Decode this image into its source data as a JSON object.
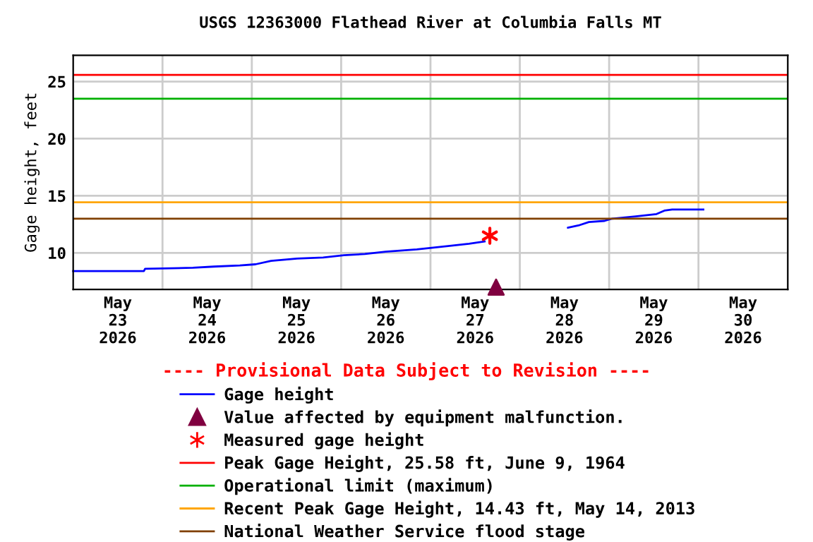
{
  "chart_data": {
    "type": "line",
    "title": "USGS 12363000 Flathead River at Columbia Falls MT",
    "ylabel": "Gage height, feet",
    "xlim": [
      "2026-05-23T00:00",
      "2026-05-31T00:00"
    ],
    "xticks": [
      {
        "value": "2026-05-23T00:00",
        "label": null
      },
      {
        "value": "2026-05-24T00:00",
        "label": null
      },
      {
        "value": "2026-05-25T00:00",
        "label": null
      },
      {
        "value": "2026-05-26T00:00",
        "label": null
      },
      {
        "value": "2026-05-27T00:00",
        "label": null
      },
      {
        "value": "2026-05-28T00:00",
        "label": null
      },
      {
        "value": "2026-05-29T00:00",
        "label": null
      },
      {
        "value": "2026-05-30T00:00",
        "label": null
      },
      {
        "value": "2026-05-31T00:00",
        "label": null
      },
      {
        "value": "2026-05-23T12:00",
        "label": "May\n23\n2026"
      },
      {
        "value": "2026-05-24T12:00",
        "label": "May\n24\n2026"
      },
      {
        "value": "2026-05-25T12:00",
        "label": "May\n25\n2026"
      },
      {
        "value": "2026-05-26T12:00",
        "label": "May\n26\n2026"
      },
      {
        "value": "2026-05-27T12:00",
        "label": "May\n27\n2026"
      },
      {
        "value": "2026-05-28T12:00",
        "label": "May\n28\n2026"
      },
      {
        "value": "2026-05-29T12:00",
        "label": "May\n29\n2026"
      },
      {
        "value": "2026-05-30T12:00",
        "label": "May\n30\n2026"
      }
    ],
    "ylim": [
      6.8,
      27.3
    ],
    "yticks": [
      10,
      15,
      20,
      25
    ],
    "grid": true,
    "legend": "bottom",
    "series": [
      {
        "name": "Gage height",
        "color": "#0000ff",
        "marker": "none",
        "line_style": "solid",
        "x": [
          "2026-05-23T00:00",
          "2026-05-23T19:00",
          "2026-05-23T19:19",
          "2026-05-24T08:11",
          "2026-05-24T13:47",
          "2026-05-24T20:47",
          "2026-05-25T00:59",
          "2026-05-25T05:11",
          "2026-05-25T12:10",
          "2026-05-25T19:10",
          "2026-05-26T00:46",
          "2026-05-26T06:22",
          "2026-05-26T11:58",
          "2026-05-26T20:21",
          "2026-05-27T04:45",
          "2026-05-27T10:21",
          "2026-05-27T14:33",
          "2026-05-28T00:00",
          "2026-05-28T12:56",
          "2026-05-28T15:45",
          "2026-05-28T18:33",
          "2026-05-28T22:45",
          "2026-05-29T00:50",
          "2026-05-29T07:08",
          "2026-05-29T12:44",
          "2026-05-29T14:50",
          "2026-05-29T16:56",
          "2026-05-30T01:19"
        ],
        "values": [
          8.4,
          8.4,
          8.6,
          8.7,
          8.8,
          8.9,
          9.0,
          9.3,
          9.5,
          9.6,
          9.8,
          9.9,
          10.1,
          10.3,
          10.6,
          10.8,
          11.0,
          null,
          12.2,
          12.4,
          12.7,
          12.8,
          13.0,
          13.2,
          13.4,
          13.7,
          13.8,
          13.8
        ]
      },
      {
        "name": "Value affected by equipment malfunction.",
        "color": "#800040",
        "type": "scatter",
        "marker": "triangle",
        "x": [
          "2026-05-27T17:38"
        ],
        "values": [
          7.0
        ]
      },
      {
        "name": "Measured gage height",
        "color": "#ff0000",
        "type": "scatter",
        "marker": "cross",
        "x": [
          "2026-05-27T15:57"
        ],
        "values": [
          11.5
        ]
      }
    ],
    "ref_lines": [
      {
        "axis": "y",
        "value": 25.58,
        "label": "Peak Gage Height, 25.58 ft, June 9, 1964",
        "color": "#ff0000",
        "line_style": "solid"
      },
      {
        "axis": "y",
        "value": 23.5,
        "label": "Operational limit (maximum)",
        "color": "#00b000",
        "line_style": "solid"
      },
      {
        "axis": "y",
        "value": 14.43,
        "label": "Recent Peak Gage Height, 14.43 ft, May 14, 2013",
        "color": "#ffa500",
        "line_style": "solid"
      },
      {
        "axis": "y",
        "value": 13.0,
        "label": "National Weather Service flood stage",
        "color": "#804000",
        "line_style": "solid"
      }
    ],
    "annotations": [
      "---- Provisional Data Subject to Revision ----"
    ]
  }
}
